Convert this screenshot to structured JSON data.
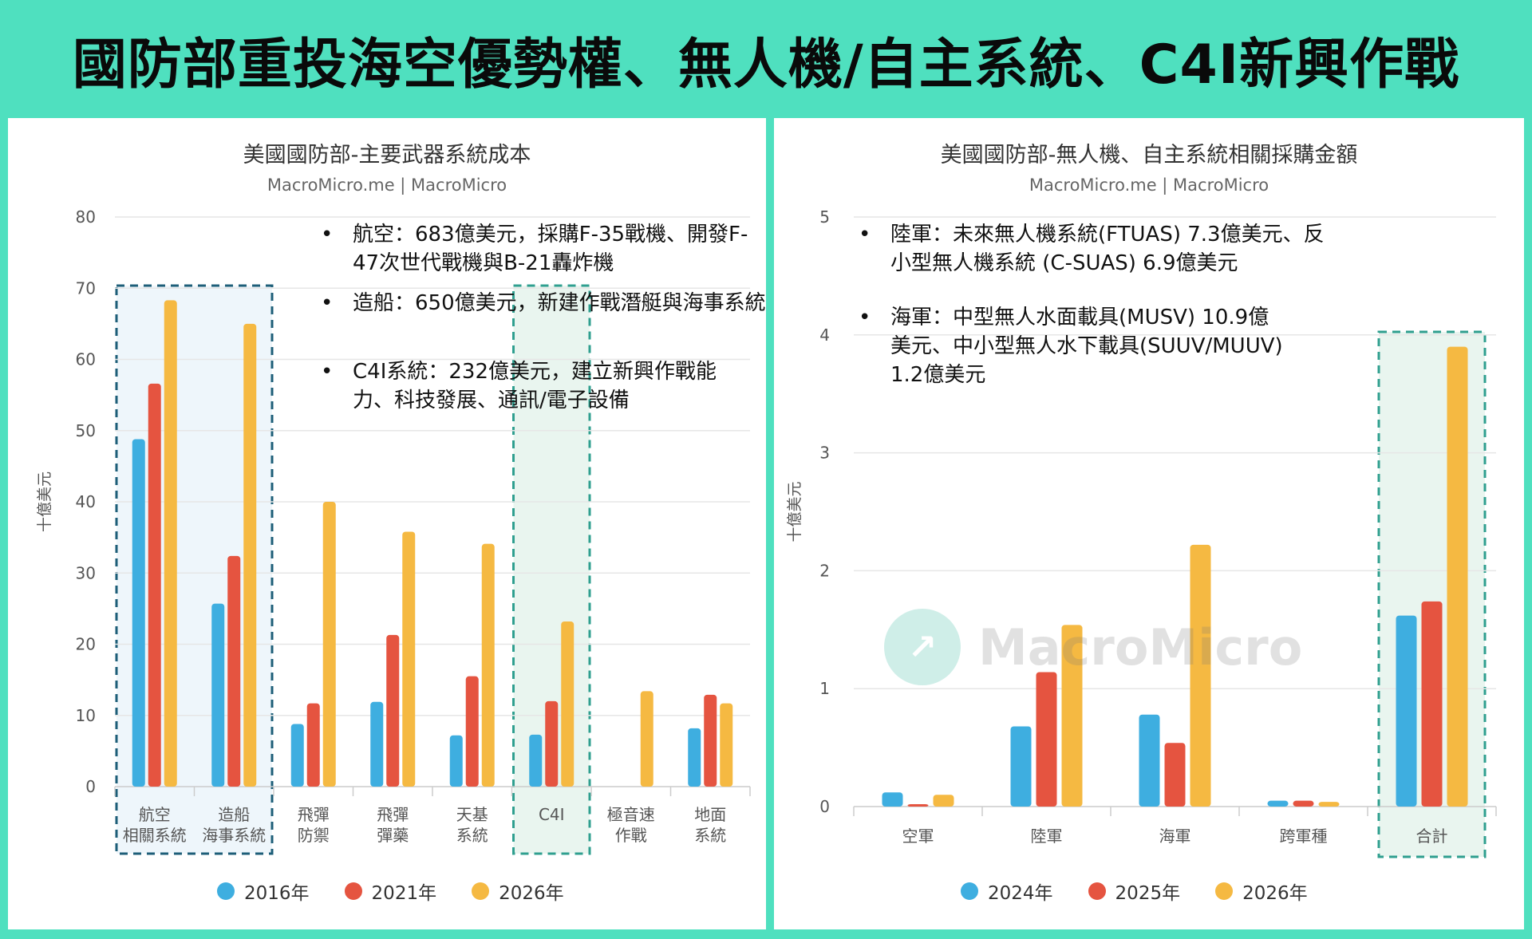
{
  "header": {
    "title": "國防部重投海空優勢權、無人機/自主系統、C4I新興作戰"
  },
  "colors": {
    "background": "#4fe0bf",
    "series_2016": "#3eaee0",
    "series_2021": "#e55440",
    "series_2026": "#f5b942",
    "highlight_blue": "#1d5e78",
    "highlight_green": "#2f9f8f"
  },
  "left": {
    "title": "美國國防部-主要武器系統成本",
    "subtitle": "MacroMicro.me | MacroMicro",
    "notes": [
      {
        "bullet": "•",
        "text": "航空：683億美元，採購F-35戰機、開發F-47次世代戰機與B-21轟炸機"
      },
      {
        "bullet": "•",
        "text": "造船：650億美元，新建作戰潛艇與海事系統"
      },
      {
        "bullet": "•",
        "text": "C4I系統：232億美元，建立新興作戰能力、科技發展、通訊/電子設備"
      }
    ],
    "legend": [
      "2016年",
      "2021年",
      "2026年"
    ]
  },
  "right": {
    "title": "美國國防部-無人機、自主系統相關採購金額",
    "subtitle": "MacroMicro.me | MacroMicro",
    "notes": [
      {
        "bullet": "•",
        "text": "陸軍：未來無人機系統(FTUAS) 7.3億美元、反小型無人機系統 (C-SUAS) 6.9億美元"
      },
      {
        "bullet": "•",
        "text": "海軍：中型無人水面載具(MUSV) 10.9億美元、中小型無人水下載具(SUUV/MUUV) 1.2億美元"
      }
    ],
    "legend": [
      "2024年",
      "2025年",
      "2026年"
    ],
    "watermark": "MacroMicro"
  },
  "chart_data": [
    {
      "type": "bar",
      "title": "美國國防部-主要武器系統成本",
      "subtitle": "MacroMicro.me | MacroMicro",
      "ylabel": "十億美元",
      "ylim": [
        0,
        80
      ],
      "yticks": [
        0,
        10,
        20,
        30,
        40,
        50,
        60,
        70,
        80
      ],
      "categories": [
        [
          "航空",
          "相關系統"
        ],
        [
          "造船",
          "海事系統"
        ],
        [
          "飛彈",
          "防禦"
        ],
        [
          "飛彈",
          "彈藥"
        ],
        [
          "天基",
          "系統"
        ],
        [
          "C4I"
        ],
        [
          "極音速",
          "作戰"
        ],
        [
          "地面",
          "系統"
        ]
      ],
      "series": [
        {
          "name": "2016年",
          "color": "#3eaee0",
          "values": [
            48.8,
            25.7,
            8.8,
            11.9,
            7.2,
            7.3,
            null,
            8.2
          ]
        },
        {
          "name": "2021年",
          "color": "#e55440",
          "values": [
            56.6,
            32.4,
            11.7,
            21.3,
            15.5,
            12.0,
            null,
            12.9
          ]
        },
        {
          "name": "2026年",
          "color": "#f5b942",
          "values": [
            68.3,
            65.0,
            40.0,
            35.8,
            34.1,
            23.2,
            13.4,
            11.7
          ]
        }
      ],
      "highlight_groups": [
        {
          "categories": [
            0,
            1
          ],
          "color": "#1d5e78",
          "fill": "#eef6fb"
        },
        {
          "categories": [
            5
          ],
          "color": "#2f9f8f",
          "fill": "#e9f5ef"
        }
      ],
      "legend_position": "bottom",
      "grid": true
    },
    {
      "type": "bar",
      "title": "美國國防部-無人機、自主系統相關採購金額",
      "subtitle": "MacroMicro.me | MacroMicro",
      "ylabel": "十億美元",
      "ylim": [
        0,
        5
      ],
      "yticks": [
        0,
        1,
        2,
        3,
        4,
        5
      ],
      "categories": [
        [
          "空軍"
        ],
        [
          "陸軍"
        ],
        [
          "海軍"
        ],
        [
          "跨軍種"
        ],
        [
          "合計"
        ]
      ],
      "series": [
        {
          "name": "2024年",
          "color": "#3eaee0",
          "values": [
            0.12,
            0.68,
            0.78,
            0.05,
            1.62
          ]
        },
        {
          "name": "2025年",
          "color": "#e55440",
          "values": [
            0.02,
            1.14,
            0.54,
            0.05,
            1.74
          ]
        },
        {
          "name": "2026年",
          "color": "#f5b942",
          "values": [
            0.1,
            1.54,
            2.22,
            0.04,
            3.9
          ]
        }
      ],
      "highlight_groups": [
        {
          "categories": [
            4
          ],
          "color": "#2f9f8f",
          "fill": "#e9f5ef"
        }
      ],
      "legend_position": "bottom",
      "grid": true
    }
  ]
}
